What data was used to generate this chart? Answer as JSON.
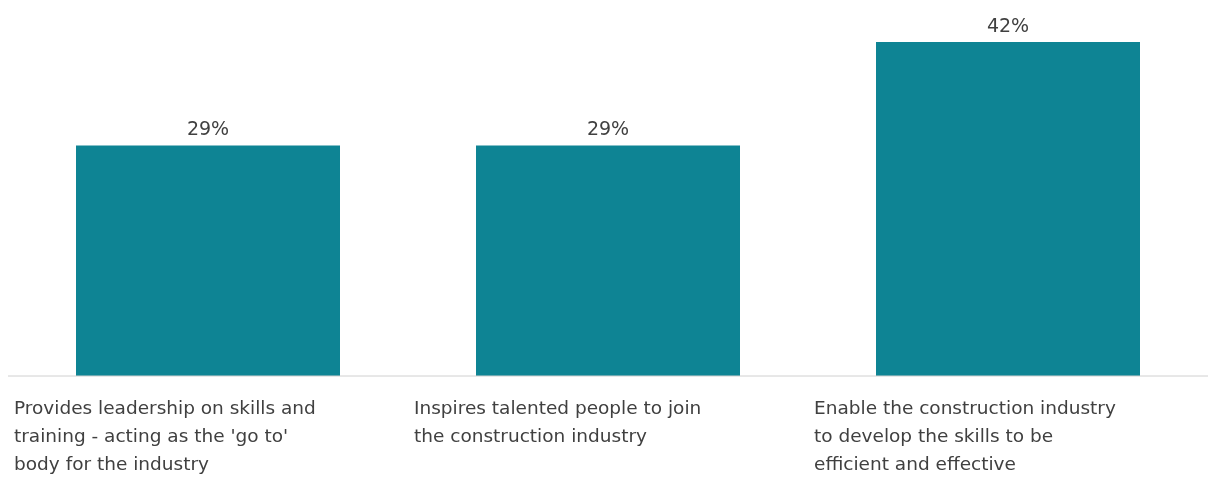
{
  "chart_data": {
    "type": "bar",
    "categories": [
      "Provides leadership on skills and training - acting as the 'go to' body for the industry",
      "Inspires talented people to join the construction industry",
      "Enable the construction industry to develop the skills to be efficient and effective"
    ],
    "values": [
      29,
      29,
      42
    ],
    "value_labels": [
      "29%",
      "29%",
      "42%"
    ],
    "color": "#0e8494"
  }
}
